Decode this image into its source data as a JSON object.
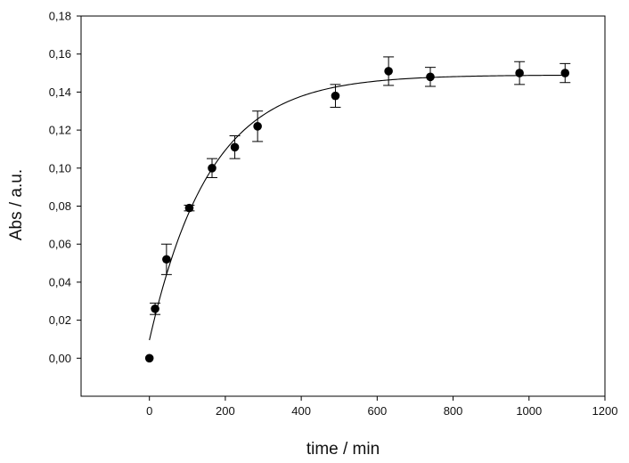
{
  "chart_data": {
    "type": "scatter",
    "xlabel": "time / min",
    "ylabel": "Abs / a.u.",
    "xlim": [
      -180,
      1200
    ],
    "ylim": [
      -0.02,
      0.18
    ],
    "xticks": [
      0,
      200,
      400,
      600,
      800,
      1000,
      1200
    ],
    "xtick_labels": [
      "0",
      "200",
      "400",
      "600",
      "800",
      "1000",
      "1200"
    ],
    "yticks": [
      0.0,
      0.02,
      0.04,
      0.06,
      0.08,
      0.1,
      0.12,
      0.14,
      0.16,
      0.18
    ],
    "ytick_labels": [
      "0,00",
      "0,02",
      "0,04",
      "0,06",
      "0,08",
      "0,10",
      "0,12",
      "0,14",
      "0,16",
      "0,18"
    ],
    "grid": false,
    "legend": "none",
    "marker_color": "#000000",
    "points": [
      {
        "x": 0,
        "y": 0.0,
        "err": 0
      },
      {
        "x": 15,
        "y": 0.026,
        "err": 0.003
      },
      {
        "x": 45,
        "y": 0.052,
        "err": 0.008
      },
      {
        "x": 105,
        "y": 0.079,
        "err": 0.0015
      },
      {
        "x": 165,
        "y": 0.1,
        "err": 0.005
      },
      {
        "x": 225,
        "y": 0.111,
        "err": 0.006
      },
      {
        "x": 285,
        "y": 0.122,
        "err": 0.008
      },
      {
        "x": 490,
        "y": 0.138,
        "err": 0.006
      },
      {
        "x": 630,
        "y": 0.151,
        "err": 0.0075
      },
      {
        "x": 740,
        "y": 0.148,
        "err": 0.005
      },
      {
        "x": 975,
        "y": 0.15,
        "err": 0.006
      },
      {
        "x": 1095,
        "y": 0.15,
        "err": 0.005
      }
    ],
    "fit": {
      "model": "exponential rise to maximum",
      "y0": 0.0095,
      "a": 0.1395,
      "k": 0.0063,
      "x_range": [
        0,
        1100
      ]
    }
  }
}
